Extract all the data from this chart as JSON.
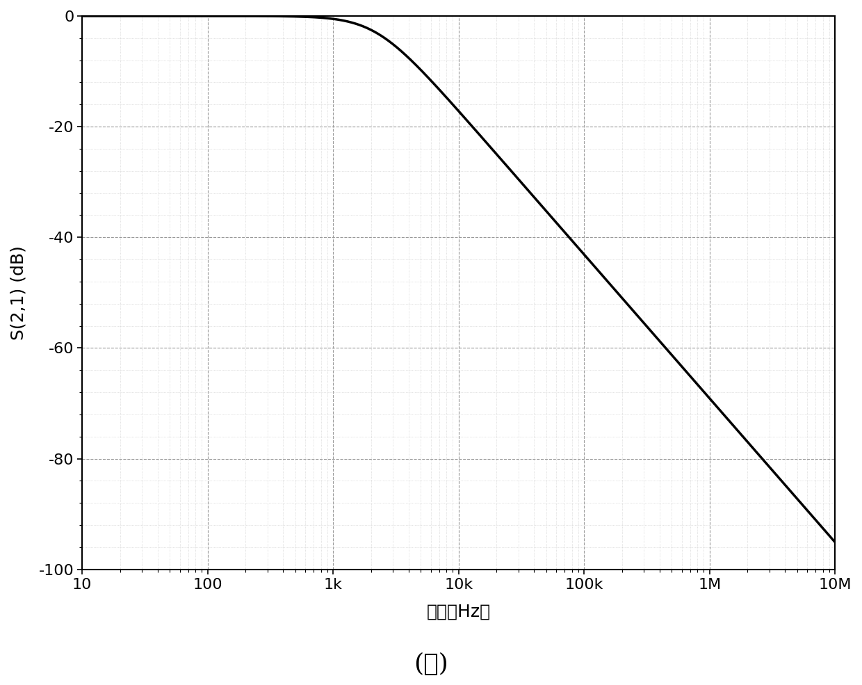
{
  "title_bottom": "(ａ)",
  "xlabel": "频率（Hz）",
  "ylabel": "S(2,1) (dB)",
  "xmin": 10,
  "xmax": 10000000,
  "ymin": -100,
  "ymax": 0,
  "yticks": [
    0,
    -20,
    -40,
    -60,
    -80,
    -100
  ],
  "xtick_labels": [
    "10",
    "100",
    "1k",
    "10k",
    "100k",
    "1M",
    "10M"
  ],
  "xtick_values": [
    10,
    100,
    1000,
    10000,
    100000,
    1000000,
    10000000
  ],
  "line_color": "#000000",
  "line_width": 2.5,
  "background_color": "#ffffff",
  "major_grid_color": "#999999",
  "minor_grid_color": "#bbbbbb",
  "fc": 2200,
  "filter_order_n": 1.3
}
